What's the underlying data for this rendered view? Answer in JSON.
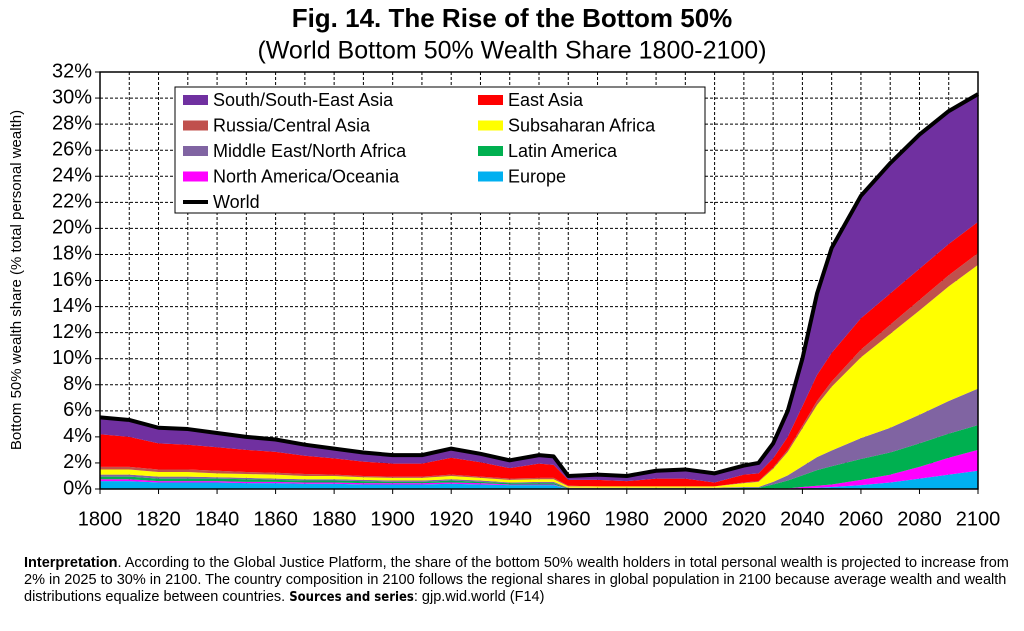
{
  "chart_data": {
    "type": "stacked_area",
    "title": "Fig. 14. The Rise of the Bottom 50%",
    "subtitle": "(World Bottom 50% Wealth Share 1800-2100)",
    "y_label": "Bottom 50% wealth share (% total personal wealth)",
    "x": [
      1800,
      1810,
      1820,
      1830,
      1840,
      1850,
      1860,
      1870,
      1880,
      1890,
      1900,
      1910,
      1920,
      1930,
      1940,
      1950,
      1955,
      1960,
      1970,
      1980,
      1990,
      2000,
      2010,
      2020,
      2025,
      2030,
      2035,
      2040,
      2045,
      2050,
      2060,
      2070,
      2080,
      2090,
      2100
    ],
    "series": [
      {
        "name": "Europe",
        "color": "#00b0f0",
        "values": [
          0.6,
          0.6,
          0.5,
          0.5,
          0.5,
          0.45,
          0.45,
          0.4,
          0.4,
          0.35,
          0.35,
          0.35,
          0.4,
          0.35,
          0.3,
          0.3,
          0.3,
          0,
          0,
          0,
          0,
          0,
          0,
          0,
          0,
          0,
          0,
          0.05,
          0.1,
          0.15,
          0.3,
          0.5,
          0.8,
          1.1,
          1.4
        ]
      },
      {
        "name": "North America/Oceania",
        "color": "#ff00ff",
        "values": [
          0.15,
          0.15,
          0.1,
          0.1,
          0.1,
          0.1,
          0.1,
          0.1,
          0.1,
          0.1,
          0.1,
          0.1,
          0.1,
          0.1,
          0.05,
          0.05,
          0.05,
          0,
          0,
          0,
          0,
          0,
          0,
          0,
          0,
          0.05,
          0.05,
          0.1,
          0.15,
          0.2,
          0.4,
          0.6,
          0.9,
          1.3,
          1.6
        ]
      },
      {
        "name": "Latin America",
        "color": "#00b050",
        "values": [
          0.2,
          0.2,
          0.2,
          0.2,
          0.2,
          0.2,
          0.15,
          0.15,
          0.15,
          0.15,
          0.1,
          0.1,
          0.15,
          0.1,
          0.1,
          0.1,
          0.1,
          0.05,
          0.05,
          0.05,
          0.05,
          0.05,
          0.05,
          0.1,
          0.1,
          0.3,
          0.6,
          0.9,
          1.2,
          1.4,
          1.6,
          1.7,
          1.8,
          1.85,
          1.9
        ]
      },
      {
        "name": "Middle East/North Africa",
        "color": "#8064a2",
        "values": [
          0.15,
          0.15,
          0.15,
          0.15,
          0.1,
          0.1,
          0.1,
          0.1,
          0.1,
          0.1,
          0.1,
          0.1,
          0.1,
          0.1,
          0.05,
          0.1,
          0.1,
          0.05,
          0.05,
          0.05,
          0.05,
          0.05,
          0.05,
          0.05,
          0.05,
          0.2,
          0.4,
          0.7,
          1.0,
          1.2,
          1.6,
          1.9,
          2.2,
          2.5,
          2.8
        ]
      },
      {
        "name": "Subsaharan Africa",
        "color": "#ffff00",
        "values": [
          0.4,
          0.4,
          0.35,
          0.35,
          0.3,
          0.3,
          0.3,
          0.25,
          0.25,
          0.2,
          0.2,
          0.2,
          0.25,
          0.2,
          0.2,
          0.2,
          0.2,
          0.1,
          0.1,
          0.1,
          0.1,
          0.1,
          0.1,
          0.3,
          0.4,
          1.0,
          1.8,
          2.9,
          4.0,
          4.9,
          6.2,
          7.2,
          8.0,
          8.8,
          9.5
        ]
      },
      {
        "name": "Russia/Central Asia",
        "color": "#c0504d",
        "values": [
          0.2,
          0.2,
          0.2,
          0.2,
          0.2,
          0.15,
          0.15,
          0.15,
          0.1,
          0.1,
          0.1,
          0.1,
          0.1,
          0.1,
          0.1,
          0.1,
          0.1,
          0.05,
          0,
          0,
          0,
          0,
          0,
          0.05,
          0.05,
          0.1,
          0.15,
          0.2,
          0.3,
          0.4,
          0.6,
          0.7,
          0.8,
          0.85,
          0.9
        ]
      },
      {
        "name": "East Asia",
        "color": "#ff0000",
        "values": [
          2.5,
          2.3,
          2.0,
          1.9,
          1.8,
          1.7,
          1.6,
          1.4,
          1.25,
          1.1,
          1.0,
          1.0,
          1.3,
          1.1,
          0.8,
          1.1,
          1.0,
          0.45,
          0.5,
          0.4,
          0.6,
          0.6,
          0.3,
          0.6,
          0.6,
          0.7,
          1.0,
          1.5,
          2.0,
          2.2,
          2.4,
          2.4,
          2.4,
          2.4,
          2.4
        ]
      },
      {
        "name": "South/South-East Asia",
        "color": "#7030a0",
        "values": [
          1.3,
          1.3,
          1.2,
          1.2,
          1.1,
          1.0,
          0.95,
          0.85,
          0.75,
          0.7,
          0.65,
          0.65,
          0.7,
          0.65,
          0.6,
          0.65,
          0.65,
          0.3,
          0.4,
          0.4,
          0.6,
          0.7,
          0.7,
          0.7,
          0.8,
          1.15,
          2.0,
          3.65,
          6.25,
          8.05,
          9.4,
          10.0,
          10.3,
          10.2,
          9.8
        ]
      }
    ],
    "line_series": {
      "name": "World",
      "color": "#000000",
      "values": [
        5.5,
        5.3,
        4.7,
        4.6,
        4.3,
        4.0,
        3.8,
        3.4,
        3.1,
        2.8,
        2.6,
        2.6,
        3.1,
        2.7,
        2.2,
        2.6,
        2.5,
        1.0,
        1.1,
        1.0,
        1.4,
        1.5,
        1.2,
        1.8,
        2.0,
        3.5,
        6.0,
        10.0,
        15.0,
        18.5,
        22.5,
        25.0,
        27.2,
        29.0,
        30.3
      ]
    },
    "xlim": [
      1800,
      2100
    ],
    "xticks": [
      1800,
      1820,
      1840,
      1860,
      1880,
      1900,
      1920,
      1940,
      1960,
      1980,
      2000,
      2020,
      2040,
      2060,
      2080,
      2100
    ],
    "xminorticks": [
      1810,
      1830,
      1850,
      1870,
      1890,
      1910,
      1930,
      1950,
      1970,
      1990,
      2010,
      2030,
      2050,
      2070,
      2090
    ],
    "ylim": [
      0,
      32
    ],
    "yticks": [
      {
        "value": 0,
        "label": "0%"
      },
      {
        "value": 2,
        "label": "2%"
      },
      {
        "value": 4,
        "label": "4%"
      },
      {
        "value": 6,
        "label": "6%"
      },
      {
        "value": 8,
        "label": "8%"
      },
      {
        "value": 10,
        "label": "10%"
      },
      {
        "value": 12,
        "label": "12%"
      },
      {
        "value": 14,
        "label": "14%"
      },
      {
        "value": 16,
        "label": "16%"
      },
      {
        "value": 18,
        "label": "18%"
      },
      {
        "value": 20,
        "label": "20%"
      },
      {
        "value": 22,
        "label": "22%"
      },
      {
        "value": 24,
        "label": "24%"
      },
      {
        "value": 26,
        "label": "26%"
      },
      {
        "value": 28,
        "label": "28%"
      },
      {
        "value": 30,
        "label": "30%"
      },
      {
        "value": 32,
        "label": "32%"
      }
    ],
    "grid": true,
    "legend": "top-left",
    "note": {
      "lead": "Interpretation",
      "text": ". According to the Global Justice Platform, the share of the bottom 50% wealth holders in total personal wealth is projected to increase from 2% in 2025 to 30% in 2100. The country composition in 2100 follows the regional shares in global population in 2100 because average wealth and wealth distributions equalize between countries. ",
      "sources_label": "Sources and series",
      "sources": ": gjp.wid.world (F14)"
    }
  }
}
